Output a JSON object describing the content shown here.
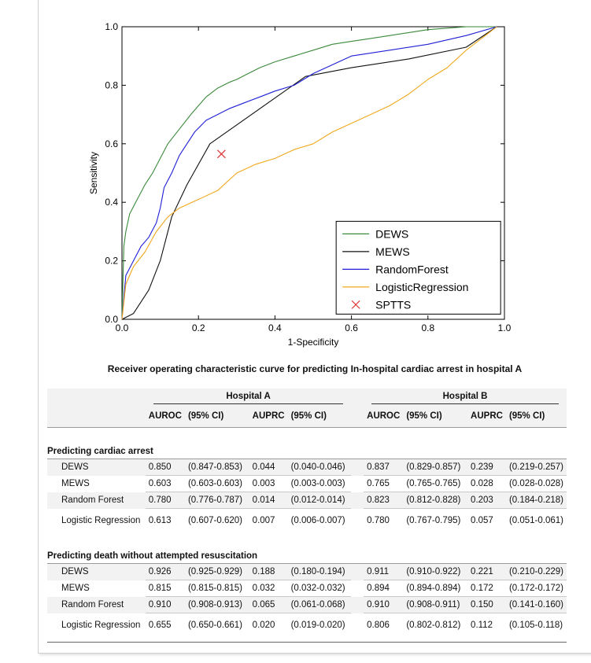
{
  "chart_data": {
    "type": "line",
    "title": "",
    "xlabel": "1-Specificity",
    "ylabel": "Sensitivity",
    "xlim": [
      0.0,
      1.0
    ],
    "ylim": [
      0.0,
      1.0
    ],
    "xticks": [
      "0.0",
      "0.2",
      "0.4",
      "0.6",
      "0.8",
      "1.0"
    ],
    "yticks": [
      "0.0",
      "0.2",
      "0.4",
      "0.6",
      "0.8",
      "1.0"
    ],
    "legend_position": "lower-right",
    "grid": false,
    "series": [
      {
        "name": "DEWS",
        "color": "#3a8a3a",
        "x": [
          0,
          0.005,
          0.01,
          0.02,
          0.04,
          0.06,
          0.08,
          0.1,
          0.12,
          0.15,
          0.18,
          0.2,
          0.22,
          0.25,
          0.28,
          0.3,
          0.33,
          0.36,
          0.4,
          0.45,
          0.5,
          0.55,
          0.6,
          0.65,
          0.7,
          0.75,
          0.8,
          0.9,
          0.98
        ],
        "y": [
          0,
          0.25,
          0.3,
          0.36,
          0.41,
          0.46,
          0.5,
          0.55,
          0.6,
          0.65,
          0.7,
          0.73,
          0.76,
          0.79,
          0.81,
          0.82,
          0.84,
          0.86,
          0.88,
          0.9,
          0.92,
          0.94,
          0.95,
          0.96,
          0.97,
          0.98,
          0.99,
          1.0,
          1.0
        ]
      },
      {
        "name": "MEWS",
        "color": "#111111",
        "x": [
          0,
          0.03,
          0.07,
          0.1,
          0.13,
          0.17,
          0.23,
          0.48,
          0.6,
          0.75,
          0.9,
          0.98
        ],
        "y": [
          0,
          0.02,
          0.1,
          0.2,
          0.35,
          0.46,
          0.6,
          0.83,
          0.86,
          0.89,
          0.93,
          1.0
        ]
      },
      {
        "name": "RandomForest",
        "color": "#1f1fd6",
        "x": [
          0,
          0.01,
          0.03,
          0.05,
          0.07,
          0.09,
          0.1,
          0.11,
          0.13,
          0.15,
          0.17,
          0.19,
          0.22,
          0.25,
          0.28,
          0.32,
          0.36,
          0.4,
          0.45,
          0.5,
          0.55,
          0.6,
          0.7,
          0.8,
          0.9,
          0.98
        ],
        "y": [
          0,
          0.15,
          0.2,
          0.25,
          0.28,
          0.33,
          0.38,
          0.45,
          0.5,
          0.56,
          0.6,
          0.64,
          0.68,
          0.7,
          0.72,
          0.74,
          0.76,
          0.78,
          0.8,
          0.84,
          0.87,
          0.9,
          0.92,
          0.94,
          0.97,
          1.0
        ]
      },
      {
        "name": "LogisticRegression",
        "color": "#f0a81c",
        "x": [
          0,
          0.01,
          0.03,
          0.06,
          0.09,
          0.12,
          0.15,
          0.2,
          0.25,
          0.3,
          0.35,
          0.4,
          0.45,
          0.5,
          0.55,
          0.6,
          0.65,
          0.7,
          0.75,
          0.8,
          0.85,
          0.9,
          0.95,
          0.98
        ],
        "y": [
          0,
          0.12,
          0.18,
          0.23,
          0.3,
          0.35,
          0.38,
          0.41,
          0.44,
          0.5,
          0.53,
          0.55,
          0.58,
          0.6,
          0.64,
          0.67,
          0.7,
          0.73,
          0.77,
          0.82,
          0.86,
          0.92,
          0.97,
          1.0
        ]
      }
    ],
    "points": [
      {
        "name": "SPTTS",
        "color": "#e03030",
        "marker": "x",
        "x": 0.26,
        "y": 0.565
      }
    ]
  },
  "caption": "Receiver operating characteristic curve for predicting In-hospital cardiac arrest in hospital A",
  "table": {
    "hospitals": [
      "Hospital A",
      "Hospital B"
    ],
    "columns": [
      "AUROC",
      "(95% CI)",
      "AUPRC",
      "(95% CI)",
      "AUROC",
      "(95% CI)",
      "AUPRC",
      "(95% CI)"
    ],
    "sections": [
      {
        "title": "Predicting cardiac arrest",
        "rows": [
          {
            "name": "DEWS",
            "values": [
              "0.850",
              "(0.847-0.853)",
              "0.044",
              "(0.040-0.046)",
              "0.837",
              "(0.829-0.857)",
              "0.239",
              "(0.219-0.257)"
            ]
          },
          {
            "name": "MEWS",
            "values": [
              "0.603",
              "(0.603-0.603)",
              "0.003",
              "(0.003-0.003)",
              "0.765",
              "(0.765-0.765)",
              "0.028",
              "(0.028-0.028)"
            ]
          },
          {
            "name": "Random Forest",
            "values": [
              "0.780",
              "(0.776-0.787)",
              "0.014",
              "(0.012-0.014)",
              "0.823",
              "(0.812-0.828)",
              "0.203",
              "(0.184-0.218)"
            ]
          },
          {
            "name": "Logistic Regression",
            "values": [
              "0.613",
              "(0.607-0.620)",
              "0.007",
              "(0.006-0.007)",
              "0.780",
              "(0.767-0.795)",
              "0.057",
              "(0.051-0.061)"
            ]
          }
        ]
      },
      {
        "title": "Predicting death without attempted resuscitation",
        "rows": [
          {
            "name": "DEWS",
            "values": [
              "0.926",
              "(0.925-0.929)",
              "0.188",
              "(0.180-0.194)",
              "0.911",
              "(0.910-0.922)",
              "0.221",
              "(0.210-0.229)"
            ]
          },
          {
            "name": "MEWS",
            "values": [
              "0.815",
              "(0.815-0.815)",
              "0.032",
              "(0.032-0.032)",
              "0.894",
              "(0.894-0.894)",
              "0.172",
              "(0.172-0.172)"
            ]
          },
          {
            "name": "Random Forest",
            "values": [
              "0.910",
              "(0.908-0.913)",
              "0.065",
              "(0.061-0.068)",
              "0.910",
              "(0.908-0.911)",
              "0.150",
              "(0.141-0.160)"
            ]
          },
          {
            "name": "Logistic Regression",
            "values": [
              "0.655",
              "(0.650-0.661)",
              "0.020",
              "(0.019-0.020)",
              "0.806",
              "(0.802-0.812)",
              "0.112",
              "(0.105-0.118)"
            ]
          }
        ]
      }
    ]
  }
}
